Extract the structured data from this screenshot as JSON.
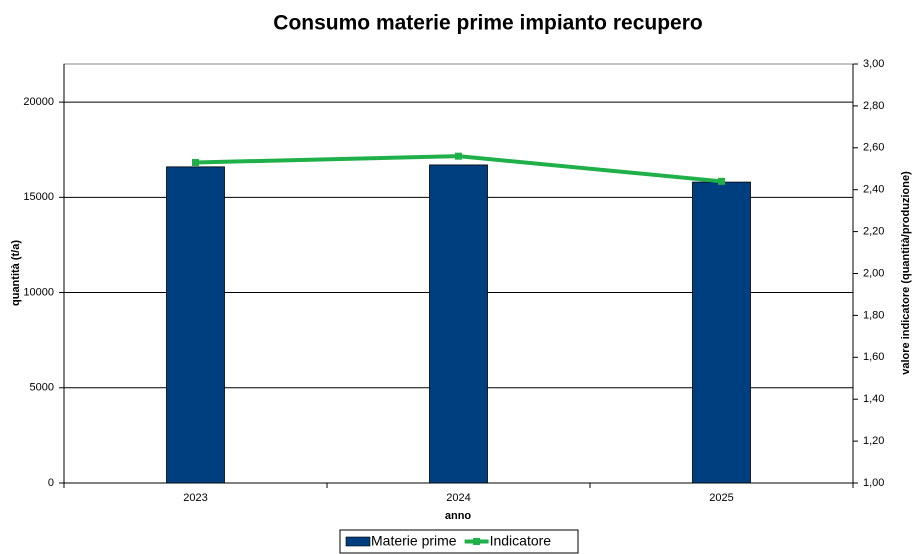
{
  "chart_data": {
    "type": "bar",
    "title": "Consumo materie prime impianto recupero",
    "xlabel": "anno",
    "ylabel": "quantità (t/a)",
    "y2label": "valore indicatore (quantità/produzione)",
    "categories": [
      "2023",
      "2024",
      "2025"
    ],
    "series": [
      {
        "name": "Materie prime",
        "type": "bar",
        "color": "#003f7f",
        "values": [
          16600,
          16700,
          15800
        ]
      },
      {
        "name": "Indicatore",
        "type": "line",
        "axis": "y2",
        "color": "#1fb04a",
        "values": [
          2.53,
          2.56,
          2.44
        ]
      }
    ],
    "ylim": [
      0,
      22000
    ],
    "yticks": [
      0,
      5000,
      10000,
      15000,
      20000
    ],
    "y2lim": [
      1.0,
      3.0
    ],
    "y2ticks": [
      {
        "value": 1.0,
        "label": "1,00"
      },
      {
        "value": 1.2,
        "label": "1,20"
      },
      {
        "value": 1.4,
        "label": "1,40"
      },
      {
        "value": 1.6,
        "label": "1,60"
      },
      {
        "value": 1.8,
        "label": "1,80"
      },
      {
        "value": 2.0,
        "label": "2,00"
      },
      {
        "value": 2.2,
        "label": "2,20"
      },
      {
        "value": 2.4,
        "label": "2,40"
      },
      {
        "value": 2.6,
        "label": "2,60"
      },
      {
        "value": 2.8,
        "label": "2,80"
      },
      {
        "value": 3.0,
        "label": "3,00"
      }
    ],
    "grid": true,
    "legend": "bottom"
  }
}
